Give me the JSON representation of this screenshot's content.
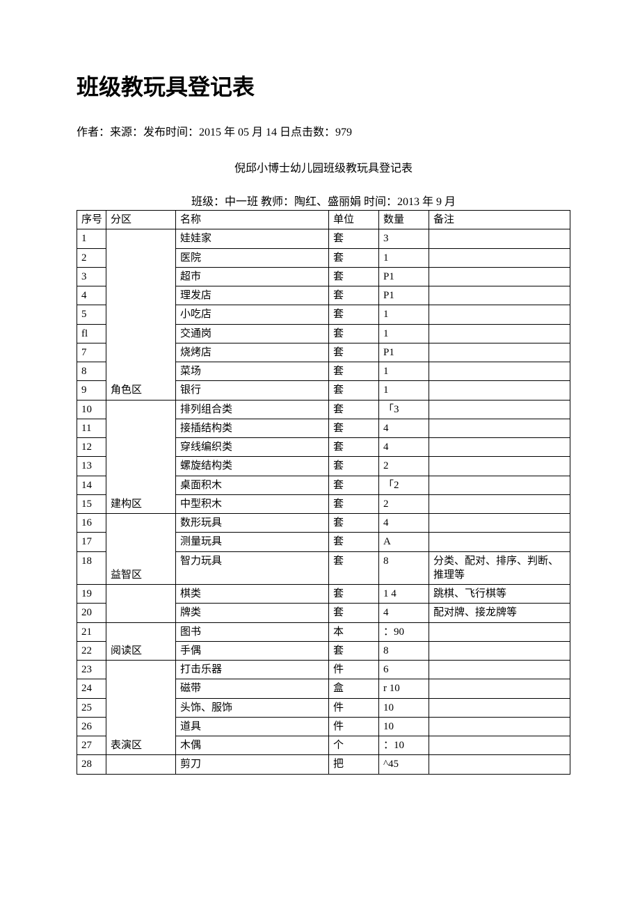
{
  "page_title": "班级教玩具登记表",
  "meta_line": "作者：来源：发布时间：2015 年 05 月 14 日点击数：979",
  "subtitle": "倪邱小博士幼儿园班级教玩具登记表",
  "class_info": "班级：中一班  教师：陶红、盛丽娟  时间：2013 年 9 月",
  "columns": {
    "seq": "序号",
    "zone": "分区",
    "name": "名称",
    "unit": "单位",
    "qty": "数量",
    "remark": "备注"
  },
  "zones": [
    {
      "label": "角色区",
      "start": 1,
      "span": 9
    },
    {
      "label": "建构区",
      "start": 10,
      "span": 6
    },
    {
      "label": "益智区",
      "start": 16,
      "span": 3
    },
    {
      "label": "",
      "start": 19,
      "span": 2
    },
    {
      "label": "阅读区",
      "start": 21,
      "span": 2
    },
    {
      "label": "表演区",
      "start": 23,
      "span": 5
    },
    {
      "label": "",
      "start": 28,
      "span": 1
    }
  ],
  "rows": [
    {
      "seq": "1",
      "name": "娃娃家",
      "unit": "套",
      "qty": "3",
      "remark": ""
    },
    {
      "seq": "2",
      "name": "医院",
      "unit": "套",
      "qty": "1",
      "remark": ""
    },
    {
      "seq": "3",
      "name": "超市",
      "unit": "套",
      "qty": "P1",
      "remark": ""
    },
    {
      "seq": "4",
      "name": "理发店",
      "unit": "套",
      "qty": "P1",
      "remark": ""
    },
    {
      "seq": "5",
      "name": "小吃店",
      "unit": "套",
      "qty": "1",
      "remark": ""
    },
    {
      "seq": "fl",
      "name": "交通岗",
      "unit": "套",
      "qty": "1",
      "remark": ""
    },
    {
      "seq": "7",
      "name": "烧烤店",
      "unit": "套",
      "qty": "P1",
      "remark": ""
    },
    {
      "seq": "8",
      "name": "菜场",
      "unit": "套",
      "qty": "1",
      "remark": ""
    },
    {
      "seq": "9",
      "name": "银行",
      "unit": "套",
      "qty": "1",
      "remark": ""
    },
    {
      "seq": "10",
      "name": "排列组合类",
      "unit": "套",
      "qty": "「3",
      "remark": ""
    },
    {
      "seq": "11",
      "name": "接插结构类",
      "unit": "套",
      "qty": "4",
      "remark": ""
    },
    {
      "seq": "12",
      "name": "穿线编织类",
      "unit": "套",
      "qty": "4",
      "remark": ""
    },
    {
      "seq": "13",
      "name": "螺旋结构类",
      "unit": "套",
      "qty": "2",
      "remark": ""
    },
    {
      "seq": "14",
      "name": "桌面积木",
      "unit": "套",
      "qty": "「2",
      "remark": ""
    },
    {
      "seq": "15",
      "name": "中型积木",
      "unit": "套",
      "qty": "2",
      "remark": ""
    },
    {
      "seq": "16",
      "name": "数形玩具",
      "unit": "套",
      "qty": "4",
      "remark": ""
    },
    {
      "seq": "17",
      "name": "测量玩具",
      "unit": "套",
      "qty": "A",
      "remark": ""
    },
    {
      "seq": "18",
      "name": "智力玩具",
      "unit": "套",
      "qty": "8",
      "remark": "分类、配对、排序、判断、推理等"
    },
    {
      "seq": "19",
      "name": "棋类",
      "unit": "套",
      "qty": "1 4",
      "remark": "跳棋、飞行棋等"
    },
    {
      "seq": "20",
      "name": "牌类",
      "unit": "套",
      "qty": "4",
      "remark": "配对牌、接龙牌等"
    },
    {
      "seq": "21",
      "name": "图书",
      "unit": "本",
      "qty": "：90",
      "remark": ""
    },
    {
      "seq": "22",
      "name": "手偶",
      "unit": "套",
      "qty": "8",
      "remark": ""
    },
    {
      "seq": "23",
      "name": "打击乐器",
      "unit": "件",
      "qty": "6",
      "remark": ""
    },
    {
      "seq": "24",
      "name": "磁带",
      "unit": "盒",
      "qty": "r 10",
      "remark": ""
    },
    {
      "seq": "25",
      "name": "头饰、服饰",
      "unit": "件",
      "qty": "10",
      "remark": ""
    },
    {
      "seq": "26",
      "name": "道具",
      "unit": "件",
      "qty": "10",
      "remark": ""
    },
    {
      "seq": "27",
      "name": "木偶",
      "unit": "个",
      "qty": "：10",
      "remark": ""
    },
    {
      "seq": "28",
      "name": "剪刀",
      "unit": "把",
      "qty": "^45",
      "remark": ""
    }
  ],
  "style": {
    "background_color": "#ffffff",
    "border_color": "#000000",
    "title_fontsize": 32,
    "body_fontsize": 15,
    "font_family_title": "SimHei",
    "font_family_body": "SimSun"
  }
}
